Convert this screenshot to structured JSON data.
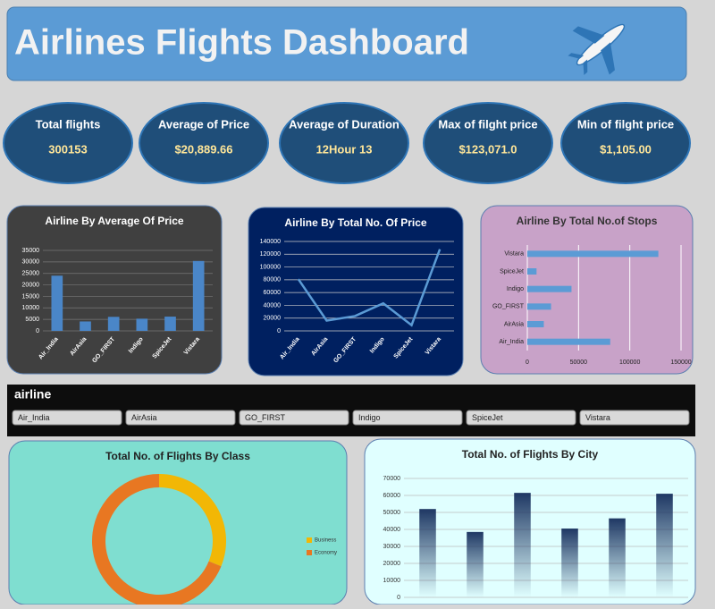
{
  "header": {
    "title": "Airlines Flights Dashboard"
  },
  "kpis": [
    {
      "label": "Total flights",
      "value": "300153"
    },
    {
      "label": "Average of Price",
      "value": "$20,889.66"
    },
    {
      "label": "Average of Duration",
      "value": "12Hour 13"
    },
    {
      "label": "Max of filght price",
      "value": "$123,071.0"
    },
    {
      "label": "Min of filght price",
      "value": "$1,105.00"
    }
  ],
  "slicer": {
    "title": "airline",
    "items": [
      "Air_India",
      "AirAsia",
      "GO_FIRST",
      "Indigo",
      "SpiceJet",
      "Vistara"
    ]
  },
  "chart_data": [
    {
      "type": "bar",
      "title": "Airline By Average Of Price",
      "color": "#4a86c8",
      "categories": [
        "Air_India",
        "AirAsia",
        "GO_FIRST",
        "Indigo",
        "SpiceJet",
        "Vistara"
      ],
      "values": [
        24000,
        4100,
        6100,
        5300,
        6200,
        30400
      ],
      "ylim": [
        0,
        35000
      ],
      "yticks": [
        0,
        5000,
        10000,
        15000,
        20000,
        25000,
        30000,
        35000
      ],
      "grid": true
    },
    {
      "type": "line",
      "title": "Airline By Total No. Of Price",
      "color": "#5b9bd5",
      "categories": [
        "Air_India",
        "AirAsia",
        "GO_FIRST",
        "Indigo",
        "SpiceJet",
        "Vistara"
      ],
      "values": [
        80892,
        16098,
        23173,
        43120,
        9011,
        127859
      ],
      "ylim": [
        0,
        140000
      ],
      "yticks": [
        0,
        20000,
        40000,
        60000,
        80000,
        100000,
        120000,
        140000
      ],
      "grid": true
    },
    {
      "type": "bar",
      "horizontal": true,
      "title": "Airline By Total No.of Stops",
      "color": "#5b9bd5",
      "categories": [
        "Air_India",
        "AirAsia",
        "GO_FIRST",
        "Indigo",
        "SpiceJet",
        "Vistara"
      ],
      "values": [
        80892,
        16098,
        23173,
        43120,
        9011,
        127859
      ],
      "xlim": [
        0,
        150000
      ],
      "xticks": [
        0,
        50000,
        100000,
        150000
      ],
      "grid": true
    },
    {
      "type": "donut",
      "title": "Total No. of Flights By Class",
      "categories": [
        "Business",
        "Economy"
      ],
      "values": [
        93487,
        206666
      ],
      "colors": [
        "#f2b705",
        "#e87722"
      ]
    },
    {
      "type": "bar",
      "title": "Total No. of Flights By City",
      "color": "#1f3864",
      "categories": [
        null,
        null,
        null,
        null,
        null,
        null
      ],
      "values": [
        52000,
        38500,
        61500,
        40500,
        46500,
        61000
      ],
      "ylim": [
        0,
        70000
      ],
      "yticks": [
        0,
        10000,
        20000,
        30000,
        40000,
        50000,
        60000,
        70000
      ],
      "grid": true
    }
  ]
}
